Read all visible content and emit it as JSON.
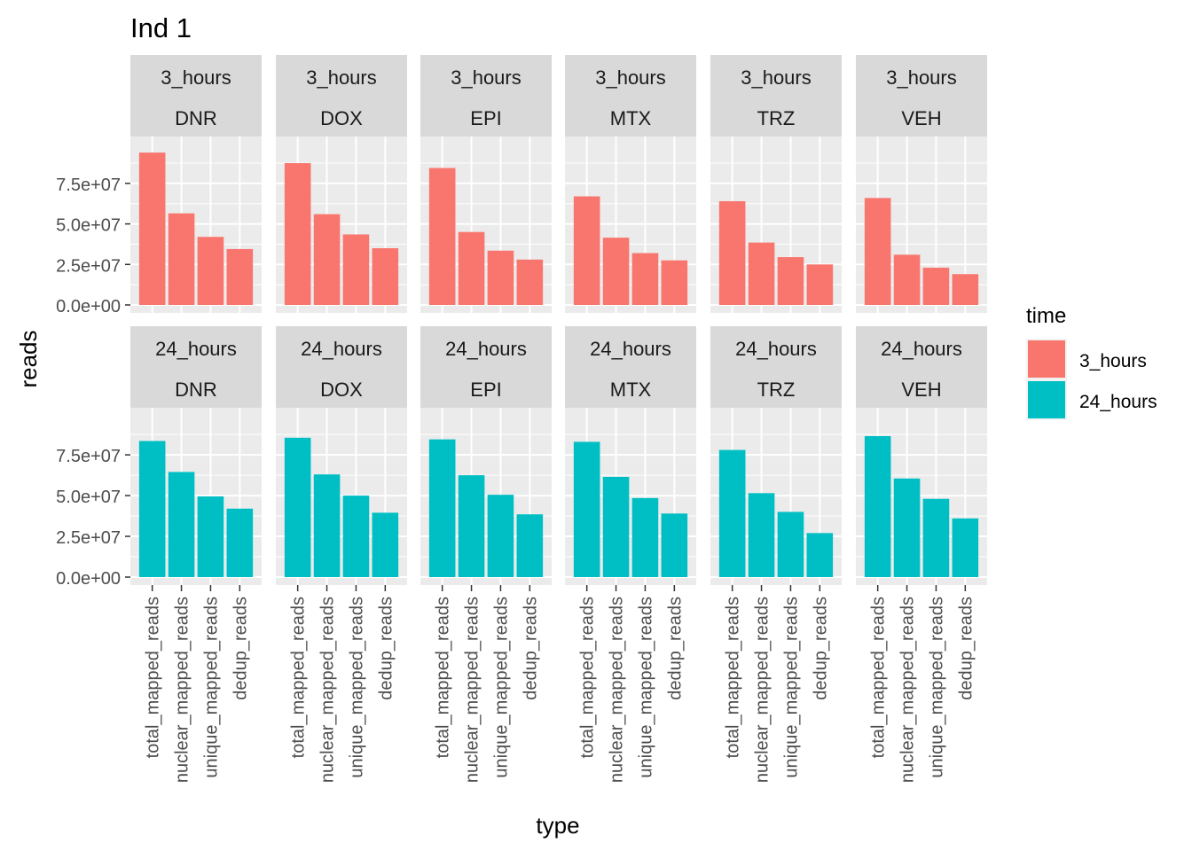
{
  "chart_data": {
    "type": "bar",
    "title": "Ind 1",
    "xlabel": "type",
    "ylabel": "reads",
    "categories": [
      "total_mapped_reads",
      "nuclear_mapped_reads",
      "unique_mapped_reads",
      "dedup_reads"
    ],
    "yticks": [
      {
        "value": 0,
        "label": "0.0e+00"
      },
      {
        "value": 25000000,
        "label": "2.5e+07"
      },
      {
        "value": 50000000,
        "label": "5.0e+07"
      },
      {
        "value": 75000000,
        "label": "7.5e+07"
      }
    ],
    "ylim": [
      0,
      99000000
    ],
    "grid": true,
    "legend": {
      "title": "time",
      "position": "right",
      "entries": [
        {
          "label": "3_hours",
          "color": "#F8766D"
        },
        {
          "label": "24_hours",
          "color": "#00BFC4"
        }
      ]
    },
    "rows": [
      {
        "time": "3_hours",
        "color": "#F8766D",
        "panels": [
          {
            "treatment": "DNR",
            "values": [
              94000000,
              56500000,
              42000000,
              34500000
            ]
          },
          {
            "treatment": "DOX",
            "values": [
              87500000,
              56000000,
              43500000,
              35000000
            ]
          },
          {
            "treatment": "EPI",
            "values": [
              84500000,
              45000000,
              33500000,
              28000000
            ]
          },
          {
            "treatment": "MTX",
            "values": [
              67000000,
              41500000,
              32000000,
              27500000
            ]
          },
          {
            "treatment": "TRZ",
            "values": [
              64000000,
              38500000,
              29500000,
              25000000
            ]
          },
          {
            "treatment": "VEH",
            "values": [
              66000000,
              31000000,
              23000000,
              19000000
            ]
          }
        ]
      },
      {
        "time": "24_hours",
        "color": "#00BFC4",
        "panels": [
          {
            "treatment": "DNR",
            "values": [
              83500000,
              64500000,
              49500000,
              42000000
            ]
          },
          {
            "treatment": "DOX",
            "values": [
              85500000,
              63000000,
              50000000,
              39500000
            ]
          },
          {
            "treatment": "EPI",
            "values": [
              84500000,
              62500000,
              50500000,
              38500000
            ]
          },
          {
            "treatment": "MTX",
            "values": [
              83000000,
              61500000,
              48500000,
              39000000
            ]
          },
          {
            "treatment": "TRZ",
            "values": [
              78000000,
              51500000,
              40000000,
              27000000
            ]
          },
          {
            "treatment": "VEH",
            "values": [
              86500000,
              60500000,
              48000000,
              36000000
            ]
          }
        ]
      }
    ]
  }
}
